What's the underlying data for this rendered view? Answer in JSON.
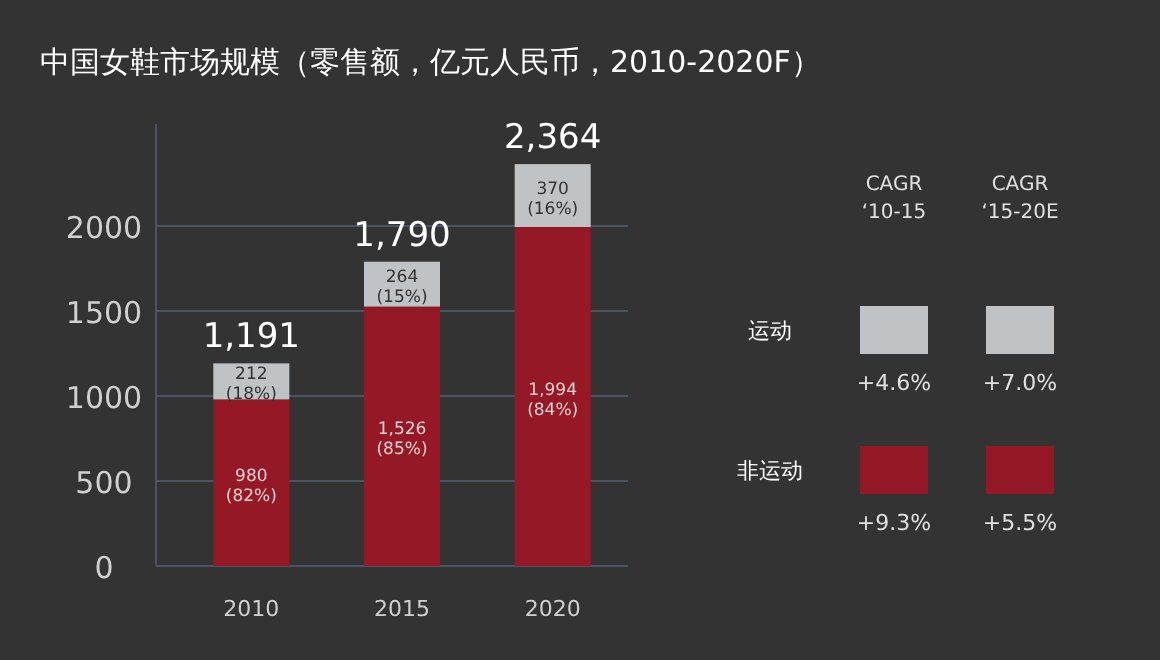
{
  "chart_data": {
    "type": "bar",
    "title": "中国女鞋市场规模（零售额，亿元人民币，2010-2020F）",
    "categories": [
      "2010",
      "2015",
      "2020"
    ],
    "stacked": true,
    "series": [
      {
        "name": "非运动",
        "color": "#951826",
        "values": [
          980,
          1526,
          1994
        ],
        "value_labels": [
          "980\n(82%)",
          "1,526\n(85%)",
          "1,994\n(84%)"
        ]
      },
      {
        "name": "运动",
        "color": "#bfc3c5",
        "values": [
          212,
          264,
          370
        ],
        "value_labels": [
          "212\n(18%)",
          "264\n(15%)",
          "370\n(16%)"
        ]
      }
    ],
    "totals": [
      "1,191",
      "1,790",
      "2,364"
    ],
    "ylim": [
      0,
      2600
    ],
    "yticks": [
      0,
      500,
      1000,
      1500,
      2000
    ],
    "grid": "y",
    "legend": "right",
    "annotations": [
      "CAGR\n‘10-15",
      "CAGR\n‘15-20E",
      "+9.3%",
      "+5.5%",
      "+4.6%",
      "+7.0%"
    ]
  }
}
